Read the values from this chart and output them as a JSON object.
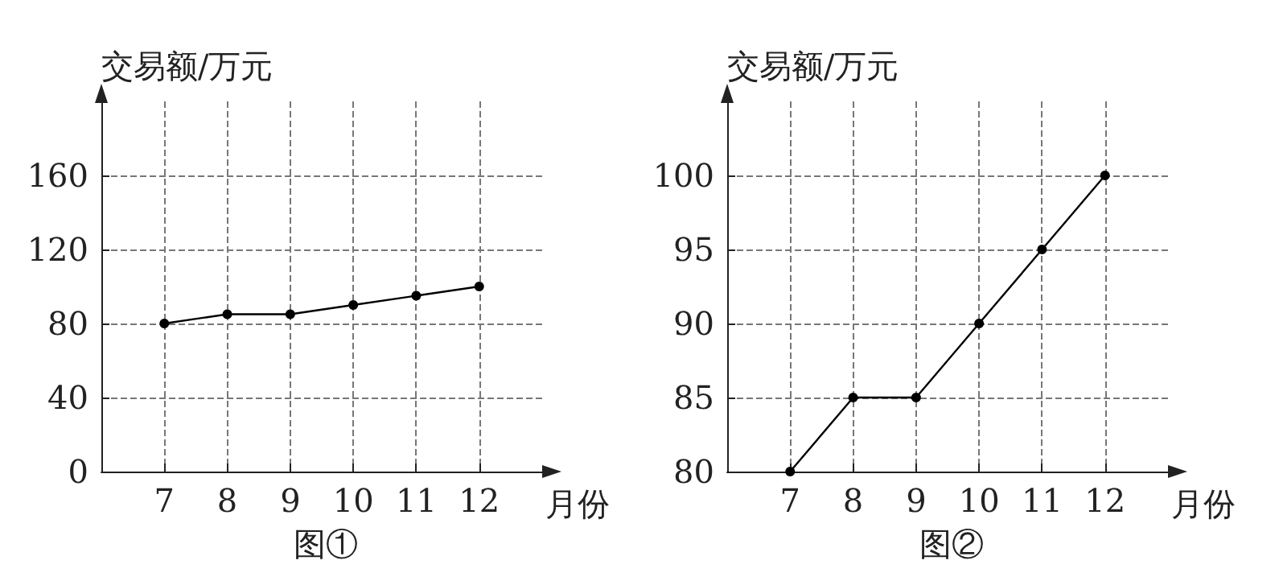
{
  "chart_data": [
    {
      "type": "line",
      "title": "图①",
      "ylabel": "交易额/万元",
      "xlabel": "月份",
      "x": [
        7,
        8,
        9,
        10,
        11,
        12
      ],
      "xlim": [
        6,
        13
      ],
      "xticks": [
        7,
        8,
        9,
        10,
        11,
        12
      ],
      "ylim": [
        0,
        200
      ],
      "yticks": [
        0,
        40,
        80,
        120,
        160
      ],
      "series": [
        {
          "color": "#000000",
          "values": [
            80,
            85,
            85,
            90,
            95,
            100
          ]
        }
      ],
      "grid": true,
      "marker": "circle",
      "line_style": "solid"
    },
    {
      "type": "line",
      "title": "图②",
      "ylabel": "交易额/万元",
      "xlabel": "月份",
      "x": [
        7,
        8,
        9,
        10,
        11,
        12
      ],
      "xlim": [
        6,
        13
      ],
      "xticks": [
        7,
        8,
        9,
        10,
        11,
        12
      ],
      "ylim": [
        80,
        105
      ],
      "yticks": [
        80,
        85,
        90,
        95,
        100
      ],
      "series": [
        {
          "color": "#000000",
          "values": [
            80,
            85,
            85,
            90,
            95,
            100
          ]
        }
      ],
      "grid": true,
      "marker": "circle",
      "line_style": "solid"
    }
  ]
}
